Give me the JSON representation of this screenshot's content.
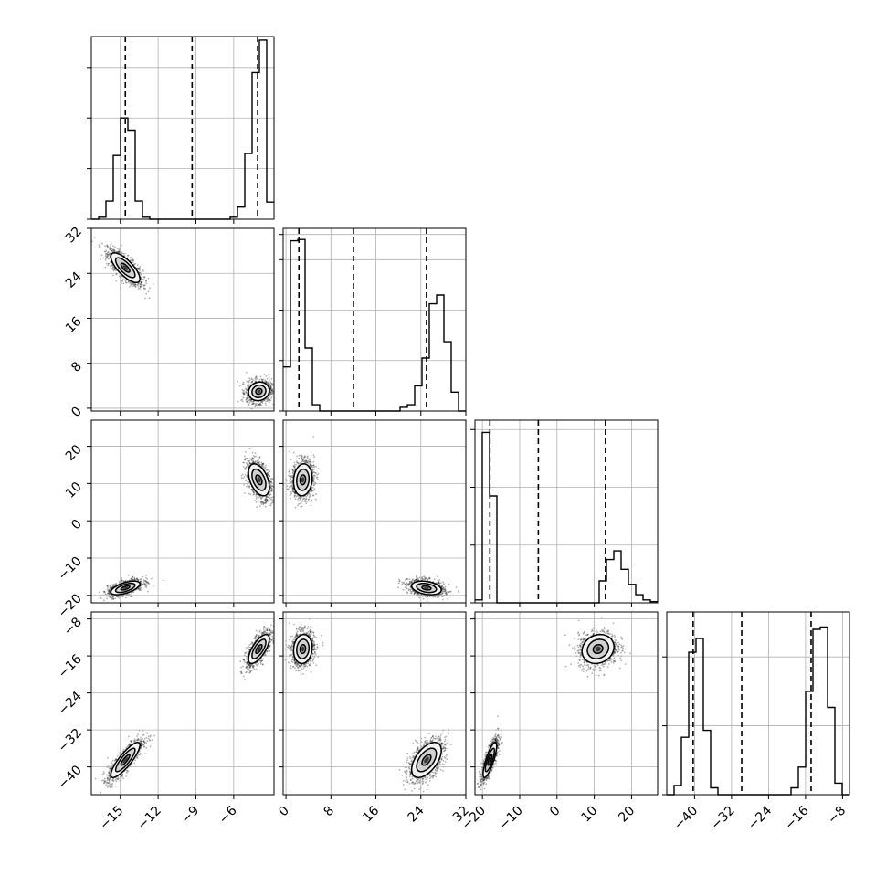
{
  "chart_data": {
    "type": "corner",
    "title": "",
    "params": [
      {
        "range": [
          -17.3,
          -2.8
        ],
        "ticks": [
          -15,
          -12,
          -9,
          -6
        ],
        "tick_labels": [
          "−15",
          "−12",
          "−9",
          "−6"
        ],
        "quantiles": [
          -14.6,
          -9.3,
          -4.1
        ],
        "hist": [
          0.0,
          0.02,
          0.18,
          0.63,
          1.0,
          0.88,
          0.18,
          0.02,
          0.0,
          0.0,
          0.0,
          0.0,
          0.0,
          0.0,
          0.0,
          0.0,
          0.0,
          0.0,
          0.0,
          0.02,
          0.12,
          0.65,
          1.45,
          1.77,
          0.17
        ],
        "hist_grid_fracs": [
          0.0,
          0.5,
          1.0,
          1.5
        ],
        "hist_max": 1.77
      },
      {
        "range": [
          -0.5,
          32.0
        ],
        "ticks": [
          0,
          8,
          16,
          24,
          32
        ],
        "tick_labels": [
          "0",
          "8",
          "16",
          "24",
          "32"
        ],
        "quantiles": [
          2.3,
          12.0,
          25.0
        ],
        "hist": [
          0.35,
          1.35,
          1.36,
          0.5,
          0.05,
          0.0,
          0.0,
          0.0,
          0.0,
          0.0,
          0.0,
          0.0,
          0.0,
          0.0,
          0.0,
          0.0,
          0.03,
          0.05,
          0.2,
          0.42,
          0.85,
          0.92,
          0.55,
          0.15,
          0.0
        ],
        "hist_grid_fracs": [
          0.0,
          0.4,
          0.8,
          1.2,
          1.4
        ],
        "hist_max": 1.42
      },
      {
        "range": [
          -22.0,
          27.0
        ],
        "ticks": [
          -20,
          -10,
          0,
          10,
          20
        ],
        "tick_labels": [
          "−20",
          "−10",
          "0",
          "10",
          "20"
        ],
        "quantiles": [
          -18.0,
          -5.0,
          13.0
        ],
        "hist": [
          0.05,
          2.95,
          1.85,
          0.0,
          0.0,
          0.0,
          0.0,
          0.0,
          0.0,
          0.0,
          0.0,
          0.0,
          0.0,
          0.0,
          0.0,
          0.0,
          0.0,
          0.38,
          0.75,
          0.9,
          0.58,
          0.32,
          0.14,
          0.05,
          0.02
        ],
        "hist_grid_fracs": [
          0.0,
          1.0,
          2.0,
          3.0
        ],
        "hist_max": 3.1
      },
      {
        "range": [
          -46.0,
          -6.5
        ],
        "ticks": [
          -40,
          -32,
          -24,
          -16,
          -8
        ],
        "tick_labels": [
          "−40",
          "−32",
          "−24",
          "−16",
          "−8"
        ],
        "quantiles": [
          -40.3,
          -29.8,
          -14.8
        ],
        "hist": [
          0.0,
          0.04,
          0.25,
          0.62,
          0.68,
          0.28,
          0.03,
          0.0,
          0.0,
          0.0,
          0.0,
          0.0,
          0.0,
          0.0,
          0.0,
          0.0,
          0.0,
          0.03,
          0.12,
          0.45,
          0.72,
          0.73,
          0.38,
          0.05,
          0.0
        ],
        "hist_grid_fracs": [
          0.0,
          0.3,
          0.6,
          0.9
        ],
        "hist_max": 0.78
      }
    ],
    "modes": [
      {
        "center": [
          -14.6,
          25.0,
          -18.0,
          -38.5
        ],
        "sd": [
          0.7,
          1.6,
          1.1,
          2.3
        ],
        "corr": {
          "0-1": -0.75,
          "0-2": 0.6,
          "0-3": 0.85,
          "1-2": -0.3,
          "1-3": 0.55,
          "2-3": 0.8
        }
      },
      {
        "center": [
          -4.0,
          3.0,
          11.0,
          -14.5
        ],
        "sd": [
          0.5,
          1.0,
          2.6,
          1.9
        ],
        "corr": {
          "0-1": 0.1,
          "0-2": -0.45,
          "0-3": 0.7,
          "1-2": 0.1,
          "1-3": 0.1,
          "2-3": 0.15
        }
      }
    ],
    "contour_levels": [
      0.5,
      1.1,
      1.65
    ],
    "grid": true,
    "legend": "none"
  }
}
